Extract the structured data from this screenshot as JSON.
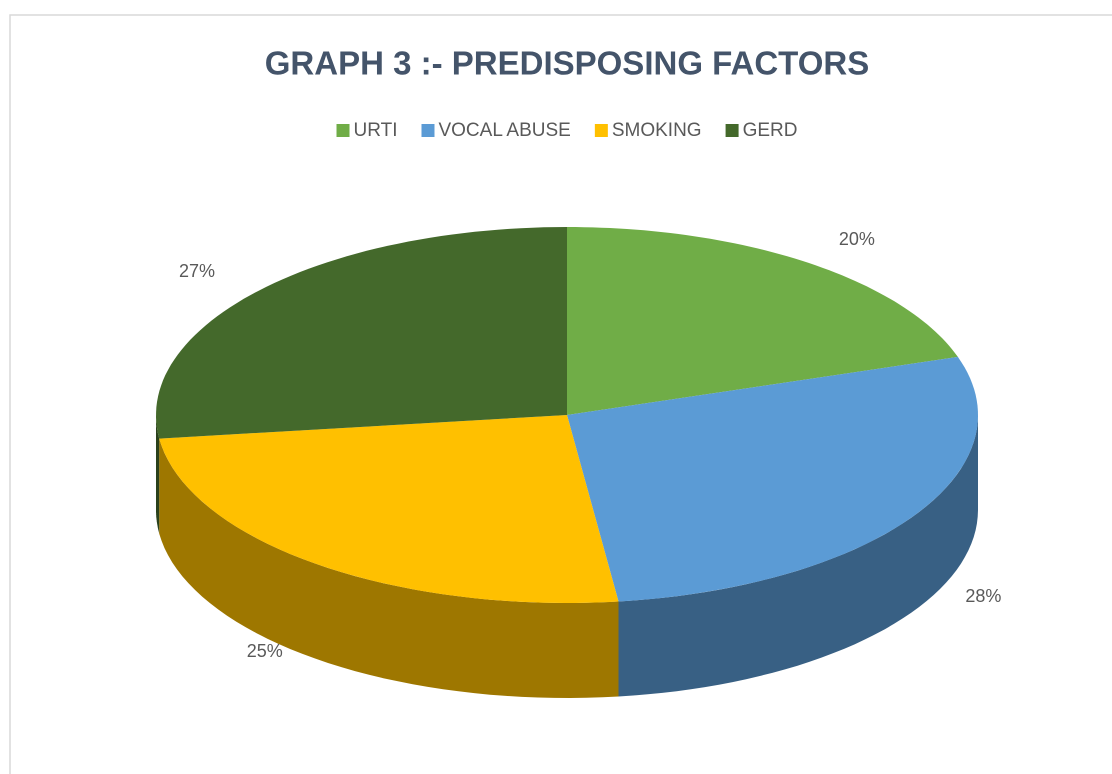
{
  "chart_data": {
    "type": "pie3d",
    "title": "GRAPH 3 :- PREDISPOSING FACTORS",
    "categories": [
      "URTI",
      "VOCAL ABUSE",
      "SMOKING",
      "GERD"
    ],
    "values": [
      20,
      28,
      25,
      27
    ],
    "value_labels": [
      "20%",
      "28%",
      "25%",
      "27%"
    ],
    "colors": [
      "#70ad47",
      "#5b9bd5",
      "#ffc000",
      "#44692b"
    ],
    "legend": "top"
  }
}
